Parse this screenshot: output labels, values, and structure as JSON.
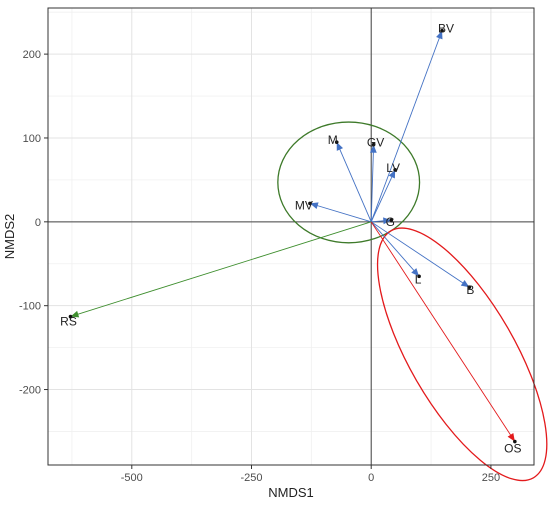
{
  "chart_data": {
    "type": "scatter",
    "title": "",
    "xlabel": "NMDS1",
    "ylabel": "NMDS2",
    "xlim": [
      -675,
      340
    ],
    "ylim": [
      -290,
      255
    ],
    "xticks": [
      -500,
      -250,
      0,
      250
    ],
    "yticks": [
      -200,
      -100,
      0,
      100,
      200
    ],
    "xtick_labels": [
      "-500",
      "-250",
      "0",
      "250"
    ],
    "ytick_labels": [
      "-200",
      "-100",
      "0",
      "100",
      "200"
    ],
    "grid": true,
    "reference_lines": {
      "x": 0,
      "y": 0
    },
    "vectors": [
      {
        "label": "BV",
        "x": 148,
        "y": 228,
        "color": "#4472C4"
      },
      {
        "label": "M",
        "x": -72,
        "y": 95,
        "color": "#4472C4"
      },
      {
        "label": "GV",
        "x": 5,
        "y": 92,
        "color": "#4472C4"
      },
      {
        "label": "LV",
        "x": 50,
        "y": 62,
        "color": "#4472C4"
      },
      {
        "label": "MV",
        "x": -128,
        "y": 22,
        "color": "#4472C4"
      },
      {
        "label": "G",
        "x": 42,
        "y": 2,
        "color": "#4472C4"
      },
      {
        "label": "L",
        "x": 100,
        "y": -65,
        "color": "#4472C4"
      },
      {
        "label": "B",
        "x": 205,
        "y": -78,
        "color": "#4472C4"
      },
      {
        "label": "RS",
        "x": -628,
        "y": -113,
        "color": "#3E8E2E"
      },
      {
        "label": "OS",
        "x": 300,
        "y": -262,
        "color": "#E31A1C"
      }
    ],
    "ellipses": [
      {
        "color": "#3E7A2A",
        "center": [
          -47,
          47
        ],
        "rx": 148,
        "ry": 72,
        "rotation_deg": 0
      },
      {
        "color": "#E31A1C",
        "center": [
          190,
          -158
        ],
        "rx": 110,
        "ry": 170,
        "rotation_deg": -30
      }
    ]
  }
}
